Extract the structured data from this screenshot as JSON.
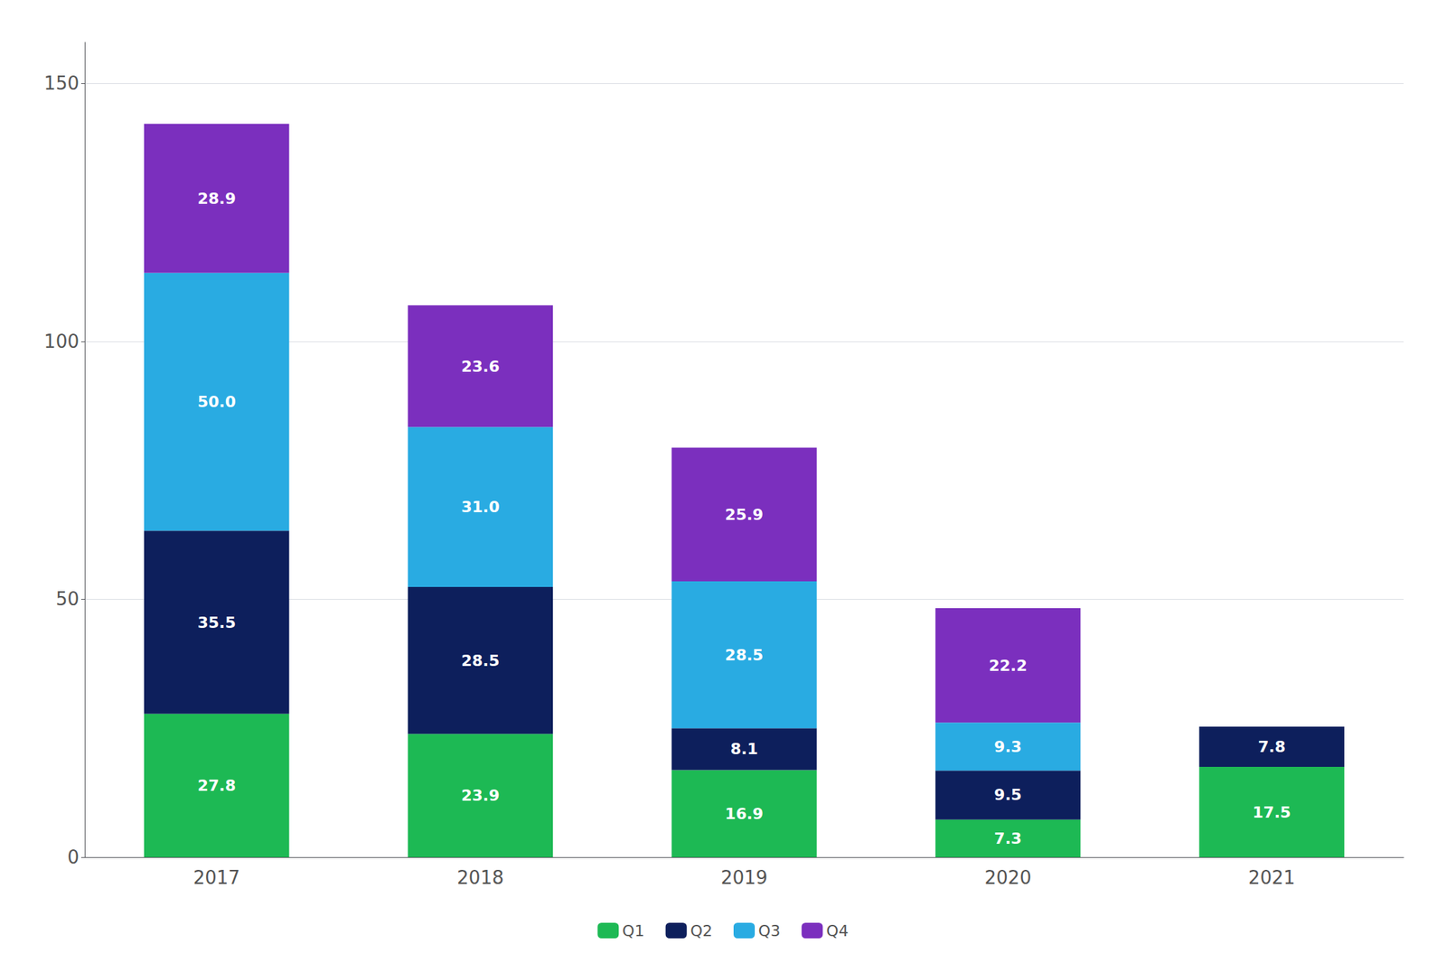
{
  "chart_data": {
    "type": "bar",
    "stacked": true,
    "categories": [
      "2017",
      "2018",
      "2019",
      "2020",
      "2021"
    ],
    "series": [
      {
        "name": "Q1",
        "color": "#1db954",
        "values": [
          27.8,
          23.9,
          16.9,
          7.3,
          17.5
        ],
        "value_labels": [
          "27.8",
          "23.9",
          "16.9",
          "7.3",
          "17.5"
        ]
      },
      {
        "name": "Q2",
        "color": "#0d1f5c",
        "values": [
          35.5,
          28.5,
          8.1,
          9.5,
          7.8
        ],
        "value_labels": [
          "35.5",
          "28.5",
          "8.1",
          "9.5",
          "7.8"
        ]
      },
      {
        "name": "Q3",
        "color": "#29abe2",
        "values": [
          50.0,
          31.0,
          28.5,
          9.3,
          0.0
        ],
        "value_labels": [
          "50.0",
          "31.0",
          "28.5",
          "9.3",
          null
        ]
      },
      {
        "name": "Q4",
        "color": "#7b2fbe",
        "values": [
          28.9,
          23.6,
          25.9,
          22.2,
          0.0
        ],
        "value_labels": [
          "28.9",
          "23.6",
          "25.9",
          "22.2",
          null
        ]
      }
    ],
    "ylim": [
      0,
      158
    ],
    "yticks": [
      0,
      50,
      100,
      150
    ],
    "grid": true,
    "legend": "bottom",
    "data_labels": true
  }
}
